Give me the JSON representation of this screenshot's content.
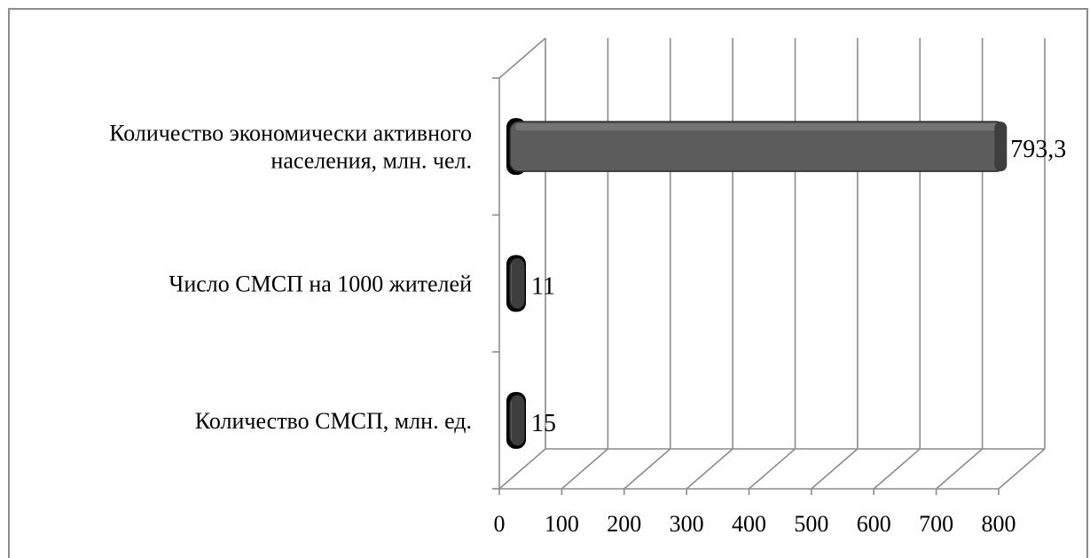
{
  "chart_data": {
    "type": "bar",
    "orientation": "horizontal",
    "style": "3d",
    "categories": [
      [
        "Количество экономически активного",
        "населения, млн. чел."
      ],
      [
        "Число СМСП на 1000 жителей"
      ],
      [
        "Количество СМСП, млн. ед."
      ]
    ],
    "values": [
      793.3,
      11,
      15
    ],
    "value_labels": [
      "793,3",
      "11",
      "15"
    ],
    "xlim": [
      0,
      800
    ],
    "x_ticks": [
      "0",
      "100",
      "200",
      "300",
      "400",
      "500",
      "600",
      "700",
      "800"
    ],
    "grid": true,
    "colors": {
      "bar": "#5c5c5c",
      "bar_top": "#7a7a7a",
      "bar_end": "#3e3e3e",
      "grid": "#8c8c8c"
    }
  }
}
